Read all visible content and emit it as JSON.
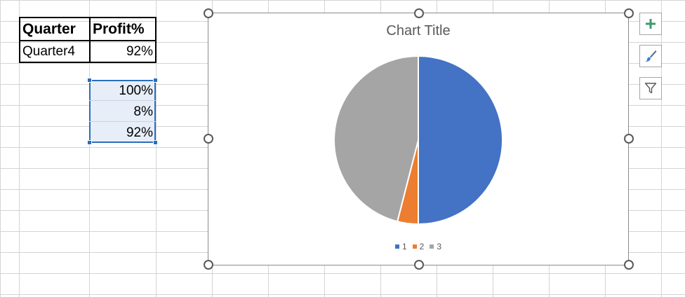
{
  "table": {
    "headers": [
      "Quarter",
      "Profit%"
    ],
    "row": {
      "quarter": "Quarter4",
      "profit": "92%"
    }
  },
  "selected_values": [
    "100%",
    "8%",
    "92%"
  ],
  "chart": {
    "title": "Chart Title",
    "side_buttons": [
      "plus-icon",
      "paintbrush-icon",
      "filter-icon"
    ]
  },
  "chart_data": {
    "type": "pie",
    "title": "Chart Title",
    "categories": [
      "1",
      "2",
      "3"
    ],
    "values": [
      100,
      8,
      92
    ],
    "colors": [
      "#4472c4",
      "#ed7d31",
      "#a5a5a5"
    ],
    "legend": "bottom"
  }
}
